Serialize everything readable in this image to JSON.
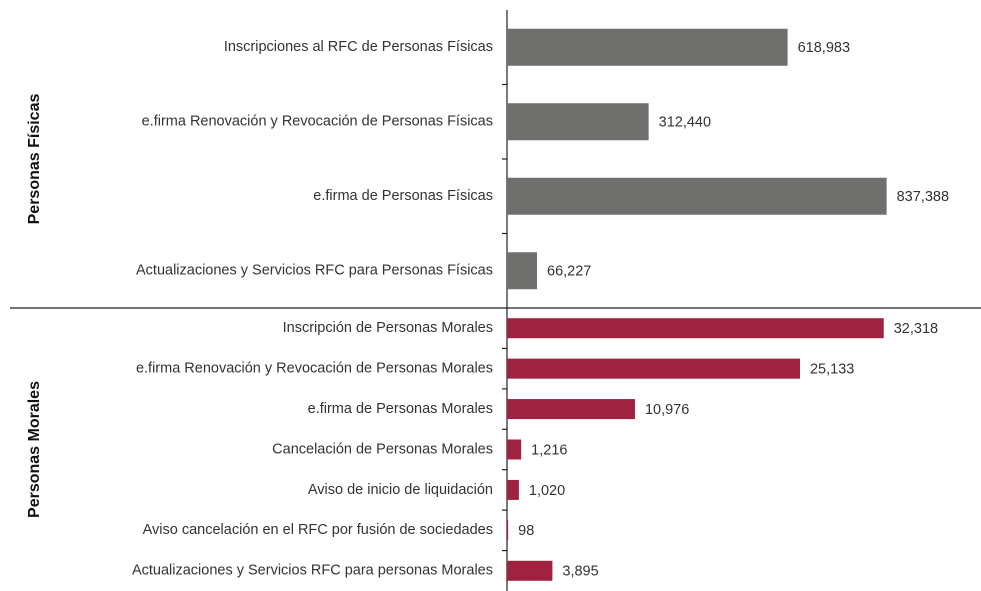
{
  "chart_data": [
    {
      "type": "bar",
      "orientation": "horizontal",
      "title": "Personas Físicas",
      "categories": [
        "Inscripciones al RFC de Personas Físicas",
        "e.firma Renovación y Revocación de Personas Físicas",
        "e.firma de Personas Físicas",
        "Actualizaciones y Servicios RFC para Personas Físicas"
      ],
      "values": [
        618983,
        312440,
        837388,
        66227
      ],
      "value_labels": [
        "618,983",
        "312,440",
        "837,388",
        "66,227"
      ],
      "color": "#6f6f6e",
      "xlim": [
        0,
        900000
      ]
    },
    {
      "type": "bar",
      "orientation": "horizontal",
      "title": "Personas Morales",
      "categories": [
        "Inscripción de Personas Morales",
        "e.firma Renovación y Revocación de Personas Morales",
        "e.firma de Personas Morales",
        "Cancelación de Personas Morales",
        "Aviso de inicio de liquidación",
        "Aviso cancelación en el RFC por fusión de sociedades",
        "Actualizaciones y Servicios RFC para personas Morales"
      ],
      "values": [
        32318,
        25133,
        10976,
        1216,
        1020,
        98,
        3895
      ],
      "value_labels": [
        "32,318",
        "25,133",
        "10,976",
        "1,216",
        "1,020",
        "98",
        "3,895"
      ],
      "color": "#9f2241",
      "xlim": [
        0,
        35000
      ]
    }
  ]
}
